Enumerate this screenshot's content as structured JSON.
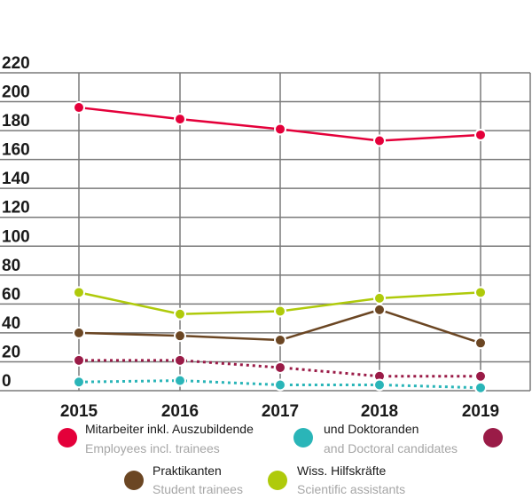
{
  "chart_data": {
    "type": "line",
    "categories": [
      "2015",
      "2016",
      "2017",
      "2018",
      "2019"
    ],
    "ylim": [
      0,
      220
    ],
    "yticks": [
      0,
      20,
      40,
      60,
      80,
      100,
      120,
      140,
      160,
      180,
      200,
      220
    ],
    "grid": true,
    "series": [
      {
        "name": "Mitarbeiter inkl. Auszubildende",
        "values": [
          196,
          188,
          181,
          173,
          177
        ],
        "color": "#e4003a",
        "style": "solid"
      },
      {
        "name": "Wiss. Hilfskräfte",
        "values": [
          68,
          53,
          55,
          64,
          68
        ],
        "color": "#afca0b",
        "style": "solid"
      },
      {
        "name": "Praktikanten",
        "values": [
          40,
          38,
          35,
          56,
          33
        ],
        "color": "#6b4623",
        "style": "solid"
      },
      {
        "name": "",
        "values": [
          21,
          21,
          16,
          10,
          10
        ],
        "color": "#9a1b47",
        "style": "dotted"
      },
      {
        "name": "und Doktoranden",
        "values": [
          6,
          7,
          4,
          4,
          2
        ],
        "color": "#2ab5b8",
        "style": "dotted"
      }
    ]
  },
  "legend": {
    "items": [
      {
        "label": "Mitarbeiter inkl. Auszubildende",
        "sublabel": "Employees incl. trainees",
        "color": "#e4003a"
      },
      {
        "label": "und Doktoranden",
        "sublabel": "and Doctoral candidates",
        "color": "#2ab5b8"
      },
      {
        "label": "",
        "sublabel": "",
        "color": "#9a1b47"
      },
      {
        "label": "Praktikanten",
        "sublabel": "Student trainees",
        "color": "#6b4623"
      },
      {
        "label": "Wiss. Hilfskräfte",
        "sublabel": "Scientific assistants",
        "color": "#afca0b"
      }
    ]
  }
}
